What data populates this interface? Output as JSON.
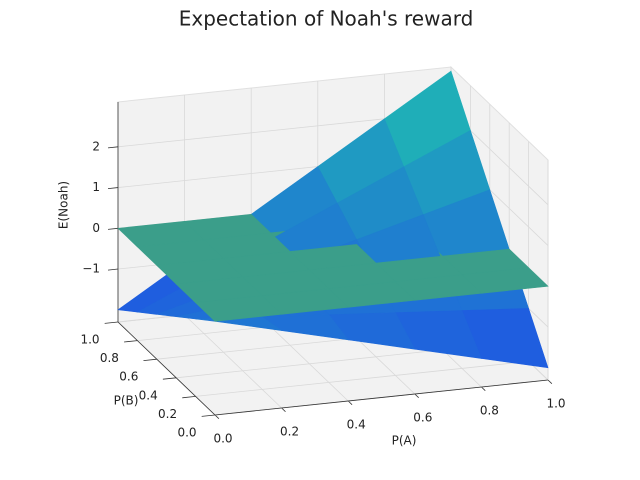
{
  "chart_data": {
    "type": "surface",
    "title": "Expectation of Noah's reward",
    "xlabel": "P(A)",
    "ylabel": "P(B)",
    "zlabel": "E(Noah)",
    "x": [
      0,
      0.2,
      0.4,
      0.6,
      0.8,
      1.0
    ],
    "y": [
      0,
      0.2,
      0.4,
      0.6,
      0.8,
      1.0
    ],
    "xlim": [
      0,
      1
    ],
    "ylim": [
      0,
      1
    ],
    "zlim": [
      -2.3,
      3.1
    ],
    "xticks": [
      {
        "value": 0,
        "label": "0.0"
      },
      {
        "value": 0.2,
        "label": "0.2"
      },
      {
        "value": 0.4,
        "label": "0.4"
      },
      {
        "value": 0.6,
        "label": "0.6"
      },
      {
        "value": 0.8,
        "label": "0.8"
      },
      {
        "value": 1.0,
        "label": "1.0"
      }
    ],
    "yticks": [
      {
        "value": 0,
        "label": "0.0"
      },
      {
        "value": 0.2,
        "label": "0.2"
      },
      {
        "value": 0.4,
        "label": "0.4"
      },
      {
        "value": 0.6,
        "label": "0.6"
      },
      {
        "value": 0.8,
        "label": "0.8"
      },
      {
        "value": 1.0,
        "label": "1.0"
      }
    ],
    "zticks": [
      {
        "value": -1,
        "label": "−1"
      },
      0,
      1,
      2
    ],
    "grid": true,
    "series": [
      {
        "colormap": [
          "#1f48ea",
          "#1fc6ac"
        ],
        "values": [
          [
            0,
            -0.4,
            -0.8,
            -1.2,
            -1.6,
            -2
          ],
          [
            -0.4,
            -0.52,
            -0.64,
            -0.76,
            -0.88,
            -1
          ],
          [
            -0.8,
            -0.64,
            -0.48,
            -0.32,
            -0.16,
            0
          ],
          [
            -1.2,
            -0.76,
            -0.32,
            0.12,
            0.56,
            1
          ],
          [
            -1.6,
            -0.88,
            -0.16,
            0.56,
            1.28,
            2
          ],
          [
            -2,
            -1,
            0,
            1,
            2,
            3
          ]
        ]
      },
      {
        "color": "#3b9e8a",
        "values": [
          [
            0,
            0,
            0,
            0,
            0,
            0
          ],
          [
            0,
            0,
            0,
            0,
            0,
            0
          ],
          [
            0,
            0,
            0,
            0,
            0,
            0
          ],
          [
            0,
            0,
            0,
            0,
            0,
            0
          ],
          [
            0,
            0,
            0,
            0,
            0,
            0
          ],
          [
            0,
            0,
            0,
            0,
            0,
            0
          ]
        ]
      }
    ]
  }
}
